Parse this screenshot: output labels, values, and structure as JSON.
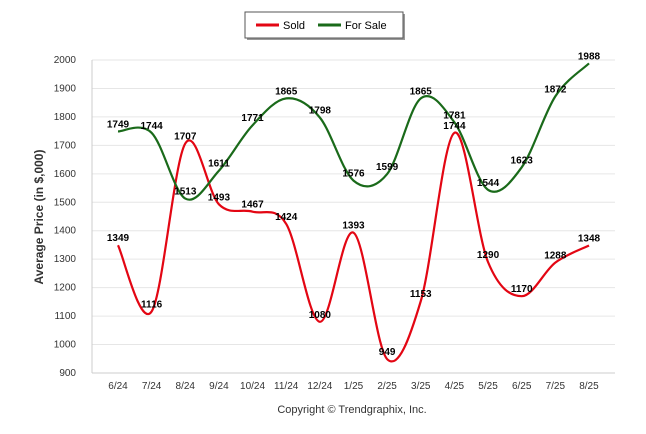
{
  "chart_data": {
    "type": "line",
    "categories": [
      "6/24",
      "7/24",
      "8/24",
      "9/24",
      "10/24",
      "11/24",
      "12/24",
      "1/25",
      "2/25",
      "3/25",
      "4/25",
      "5/25",
      "6/25",
      "7/25",
      "8/25"
    ],
    "series": [
      {
        "name": "Sold",
        "color": "#e30613",
        "values": [
          1349,
          1116,
          1707,
          1493,
          1467,
          1424,
          1080,
          1393,
          949,
          1153,
          1744,
          1290,
          1170,
          1288,
          1348
        ]
      },
      {
        "name": "For Sale",
        "color": "#1a6a1a",
        "values": [
          1749,
          1744,
          1513,
          1611,
          1771,
          1865,
          1798,
          1576,
          1599,
          1865,
          1781,
          1544,
          1623,
          1872,
          1988
        ]
      }
    ],
    "ylabel": "Average Price (in $,000)",
    "xlabel": "",
    "ylim": [
      900,
      2000
    ],
    "yticks": [
      "900",
      "1000",
      "1100",
      "1200",
      "1300",
      "1400",
      "1500",
      "1600",
      "1700",
      "1800",
      "1900",
      "2000"
    ],
    "grid": true,
    "legend_position": "top-center"
  },
  "footer": {
    "copyright": "Copyright © Trendgraphix, Inc."
  }
}
